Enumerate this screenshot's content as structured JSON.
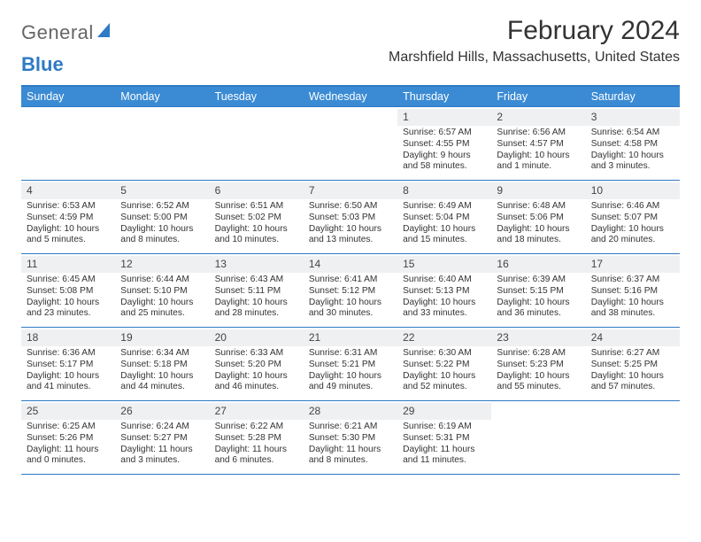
{
  "logo": {
    "text1": "General",
    "text2": "Blue"
  },
  "title": "February 2024",
  "subtitle": "Marshfield Hills, Massachusetts, United States",
  "colors": {
    "accent": "#3b8bd4",
    "border": "#2f7ac4",
    "shade": "#eef0f2"
  },
  "day_headers": [
    "Sunday",
    "Monday",
    "Tuesday",
    "Wednesday",
    "Thursday",
    "Friday",
    "Saturday"
  ],
  "weeks": [
    [
      {
        "empty": true
      },
      {
        "empty": true
      },
      {
        "empty": true
      },
      {
        "empty": true
      },
      {
        "day": "1",
        "sunrise": "Sunrise: 6:57 AM",
        "sunset": "Sunset: 4:55 PM",
        "daylight": "Daylight: 9 hours and 58 minutes."
      },
      {
        "day": "2",
        "sunrise": "Sunrise: 6:56 AM",
        "sunset": "Sunset: 4:57 PM",
        "daylight": "Daylight: 10 hours and 1 minute."
      },
      {
        "day": "3",
        "sunrise": "Sunrise: 6:54 AM",
        "sunset": "Sunset: 4:58 PM",
        "daylight": "Daylight: 10 hours and 3 minutes."
      }
    ],
    [
      {
        "day": "4",
        "sunrise": "Sunrise: 6:53 AM",
        "sunset": "Sunset: 4:59 PM",
        "daylight": "Daylight: 10 hours and 5 minutes."
      },
      {
        "day": "5",
        "sunrise": "Sunrise: 6:52 AM",
        "sunset": "Sunset: 5:00 PM",
        "daylight": "Daylight: 10 hours and 8 minutes."
      },
      {
        "day": "6",
        "sunrise": "Sunrise: 6:51 AM",
        "sunset": "Sunset: 5:02 PM",
        "daylight": "Daylight: 10 hours and 10 minutes."
      },
      {
        "day": "7",
        "sunrise": "Sunrise: 6:50 AM",
        "sunset": "Sunset: 5:03 PM",
        "daylight": "Daylight: 10 hours and 13 minutes."
      },
      {
        "day": "8",
        "sunrise": "Sunrise: 6:49 AM",
        "sunset": "Sunset: 5:04 PM",
        "daylight": "Daylight: 10 hours and 15 minutes."
      },
      {
        "day": "9",
        "sunrise": "Sunrise: 6:48 AM",
        "sunset": "Sunset: 5:06 PM",
        "daylight": "Daylight: 10 hours and 18 minutes."
      },
      {
        "day": "10",
        "sunrise": "Sunrise: 6:46 AM",
        "sunset": "Sunset: 5:07 PM",
        "daylight": "Daylight: 10 hours and 20 minutes."
      }
    ],
    [
      {
        "day": "11",
        "sunrise": "Sunrise: 6:45 AM",
        "sunset": "Sunset: 5:08 PM",
        "daylight": "Daylight: 10 hours and 23 minutes."
      },
      {
        "day": "12",
        "sunrise": "Sunrise: 6:44 AM",
        "sunset": "Sunset: 5:10 PM",
        "daylight": "Daylight: 10 hours and 25 minutes."
      },
      {
        "day": "13",
        "sunrise": "Sunrise: 6:43 AM",
        "sunset": "Sunset: 5:11 PM",
        "daylight": "Daylight: 10 hours and 28 minutes."
      },
      {
        "day": "14",
        "sunrise": "Sunrise: 6:41 AM",
        "sunset": "Sunset: 5:12 PM",
        "daylight": "Daylight: 10 hours and 30 minutes."
      },
      {
        "day": "15",
        "sunrise": "Sunrise: 6:40 AM",
        "sunset": "Sunset: 5:13 PM",
        "daylight": "Daylight: 10 hours and 33 minutes."
      },
      {
        "day": "16",
        "sunrise": "Sunrise: 6:39 AM",
        "sunset": "Sunset: 5:15 PM",
        "daylight": "Daylight: 10 hours and 36 minutes."
      },
      {
        "day": "17",
        "sunrise": "Sunrise: 6:37 AM",
        "sunset": "Sunset: 5:16 PM",
        "daylight": "Daylight: 10 hours and 38 minutes."
      }
    ],
    [
      {
        "day": "18",
        "sunrise": "Sunrise: 6:36 AM",
        "sunset": "Sunset: 5:17 PM",
        "daylight": "Daylight: 10 hours and 41 minutes."
      },
      {
        "day": "19",
        "sunrise": "Sunrise: 6:34 AM",
        "sunset": "Sunset: 5:18 PM",
        "daylight": "Daylight: 10 hours and 44 minutes."
      },
      {
        "day": "20",
        "sunrise": "Sunrise: 6:33 AM",
        "sunset": "Sunset: 5:20 PM",
        "daylight": "Daylight: 10 hours and 46 minutes."
      },
      {
        "day": "21",
        "sunrise": "Sunrise: 6:31 AM",
        "sunset": "Sunset: 5:21 PM",
        "daylight": "Daylight: 10 hours and 49 minutes."
      },
      {
        "day": "22",
        "sunrise": "Sunrise: 6:30 AM",
        "sunset": "Sunset: 5:22 PM",
        "daylight": "Daylight: 10 hours and 52 minutes."
      },
      {
        "day": "23",
        "sunrise": "Sunrise: 6:28 AM",
        "sunset": "Sunset: 5:23 PM",
        "daylight": "Daylight: 10 hours and 55 minutes."
      },
      {
        "day": "24",
        "sunrise": "Sunrise: 6:27 AM",
        "sunset": "Sunset: 5:25 PM",
        "daylight": "Daylight: 10 hours and 57 minutes."
      }
    ],
    [
      {
        "day": "25",
        "sunrise": "Sunrise: 6:25 AM",
        "sunset": "Sunset: 5:26 PM",
        "daylight": "Daylight: 11 hours and 0 minutes."
      },
      {
        "day": "26",
        "sunrise": "Sunrise: 6:24 AM",
        "sunset": "Sunset: 5:27 PM",
        "daylight": "Daylight: 11 hours and 3 minutes."
      },
      {
        "day": "27",
        "sunrise": "Sunrise: 6:22 AM",
        "sunset": "Sunset: 5:28 PM",
        "daylight": "Daylight: 11 hours and 6 minutes."
      },
      {
        "day": "28",
        "sunrise": "Sunrise: 6:21 AM",
        "sunset": "Sunset: 5:30 PM",
        "daylight": "Daylight: 11 hours and 8 minutes."
      },
      {
        "day": "29",
        "sunrise": "Sunrise: 6:19 AM",
        "sunset": "Sunset: 5:31 PM",
        "daylight": "Daylight: 11 hours and 11 minutes."
      },
      {
        "empty": true
      },
      {
        "empty": true
      }
    ]
  ]
}
